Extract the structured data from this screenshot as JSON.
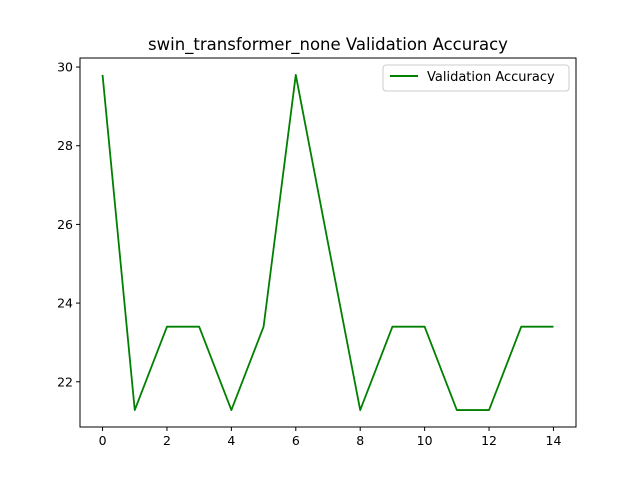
{
  "chart_data": {
    "type": "line",
    "title": "swin_transformer_none Validation Accuracy",
    "xlabel": "",
    "ylabel": "",
    "x": [
      0,
      1,
      2,
      3,
      4,
      5,
      6,
      7,
      8,
      9,
      10,
      11,
      12,
      13,
      14
    ],
    "series": [
      {
        "name": "Validation Accuracy",
        "color": "#008000",
        "values": [
          29.8,
          21.28,
          23.4,
          23.4,
          21.28,
          23.4,
          29.8,
          25.53,
          21.28,
          23.4,
          23.4,
          21.28,
          21.28,
          23.4,
          23.4
        ]
      }
    ],
    "xlim": [
      -0.7,
      14.7
    ],
    "ylim": [
      20.85,
      30.23
    ],
    "xticks": [
      0,
      2,
      4,
      6,
      8,
      10,
      12,
      14
    ],
    "yticks": [
      22,
      24,
      26,
      28,
      30
    ],
    "grid": false,
    "legend_position": "top-right"
  }
}
